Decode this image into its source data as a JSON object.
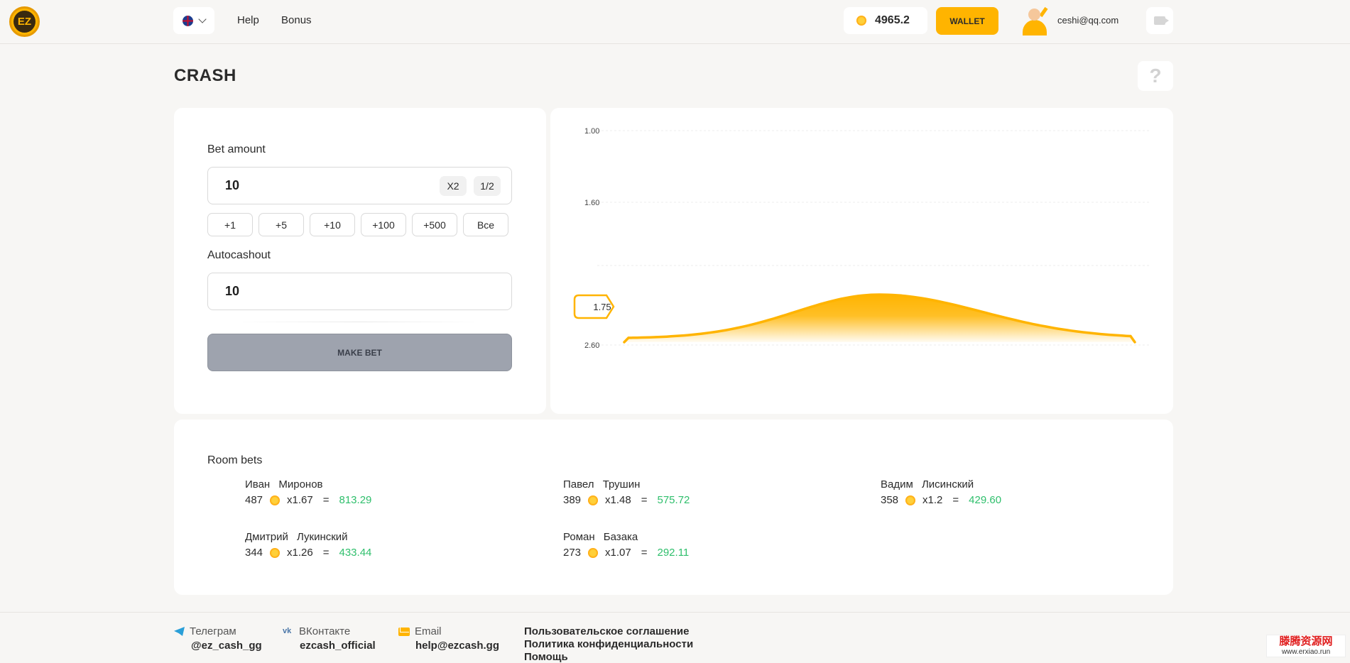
{
  "header": {
    "logo_text": "EZ",
    "nav": {
      "help": "Help",
      "bonus": "Bonus"
    },
    "balance": "4965.2",
    "wallet_label": "WALLET",
    "user_email": "ceshi@qq.com"
  },
  "page_title": "CRASH",
  "help_glyph": "?",
  "bet_panel": {
    "bet_amount_label": "Bet amount",
    "bet_amount_value": "10",
    "x2_label": "X2",
    "half_label": "1/2",
    "quick_buttons": [
      "+1",
      "+5",
      "+10",
      "+100",
      "+500",
      "Все"
    ],
    "autocashout_label": "Autocashout",
    "autocashout_value": "10",
    "make_bet_label": "MAKE BET"
  },
  "chart_data": {
    "type": "area",
    "y_ticks": [
      "1.00",
      "1.60",
      "2.60"
    ],
    "current_marker": "1.75",
    "color": "#ffb400"
  },
  "room_bets": {
    "title": "Room bets",
    "bets": [
      {
        "name": "Иван Миронов",
        "amount": "487",
        "multiplier": "x1.67",
        "eq": "=",
        "win": "813.29"
      },
      {
        "name": "Павел Трушин",
        "amount": "389",
        "multiplier": "x1.48",
        "eq": "=",
        "win": "575.72"
      },
      {
        "name": "Вадим Лисинский",
        "amount": "358",
        "multiplier": "x1.2",
        "eq": "=",
        "win": "429.60"
      },
      {
        "name": "Дмитрий Лукинский",
        "amount": "344",
        "multiplier": "x1.26",
        "eq": "=",
        "win": "433.44"
      },
      {
        "name": "Роман Базака",
        "amount": "273",
        "multiplier": "x1.07",
        "eq": "=",
        "win": "292.11"
      }
    ]
  },
  "footer": {
    "telegram_label": "Телеграм",
    "telegram_value": "@ez_cash_gg",
    "vk_label": "ВКонтакте",
    "vk_value": "ezcash_official",
    "email_label": "Email",
    "email_value": "help@ezcash.gg",
    "links": [
      "Пользовательское соглашение",
      "Политика конфиденциальности",
      "Помощь"
    ]
  },
  "watermark": {
    "top": "滕腾资源网",
    "bottom": "www.erxiao.run"
  }
}
